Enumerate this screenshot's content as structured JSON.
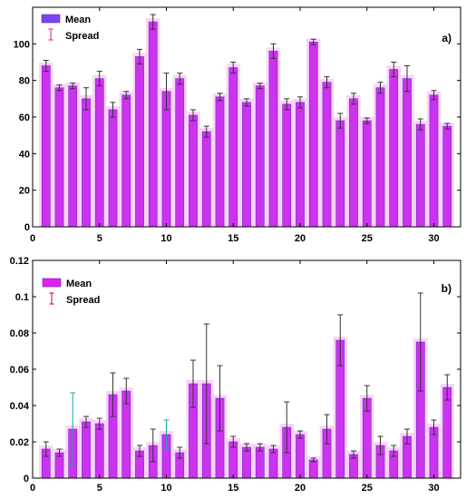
{
  "colors": {
    "bar": "#cc33ee",
    "bar_edge": "#7722cc",
    "bar_glow": "#f6c8f6",
    "legend_mean_a": "#7a44ee",
    "legend_mean_b": "#dd22ee",
    "errorbar": "#333333",
    "errorbar_cyan": "#11aaaa",
    "legend_spread_a": "#e04090",
    "legend_spread_b": "#dd2244",
    "axis": "#000000"
  },
  "chart_data": [
    {
      "type": "bar",
      "panel_label": "a)",
      "legend": {
        "placement": "top-left",
        "entries": [
          "Mean",
          "Spread"
        ]
      },
      "xlim": [
        0,
        32
      ],
      "ylim": [
        0,
        120
      ],
      "xticks": [
        "0",
        "5",
        "10",
        "15",
        "20",
        "25",
        "30"
      ],
      "yticks": [
        "0",
        "20",
        "40",
        "60",
        "80",
        "100"
      ],
      "grid": false,
      "x": [
        1,
        2,
        3,
        4,
        5,
        6,
        7,
        8,
        9,
        10,
        11,
        12,
        13,
        14,
        15,
        16,
        17,
        18,
        19,
        20,
        21,
        22,
        23,
        24,
        25,
        26,
        27,
        28,
        29,
        30,
        31
      ],
      "series": [
        {
          "name": "Mean",
          "values": [
            88,
            76,
            77,
            70,
            81,
            64,
            72,
            93,
            112,
            74,
            81,
            61,
            52,
            71,
            87,
            68,
            77,
            96,
            67,
            68,
            101,
            79,
            58,
            70,
            58,
            76,
            86,
            81,
            56,
            72,
            55
          ],
          "error": [
            3,
            1.5,
            1.5,
            6,
            4,
            4,
            2,
            4,
            4,
            10,
            3,
            3,
            3,
            2,
            3,
            2,
            1.5,
            4,
            3,
            3,
            1.5,
            3,
            4,
            3,
            1.5,
            3,
            4,
            7,
            3,
            2.5,
            1.5
          ]
        }
      ]
    },
    {
      "type": "bar",
      "panel_label": "b)",
      "legend": {
        "placement": "top-left",
        "entries": [
          "Mean",
          "Spread"
        ]
      },
      "xlim": [
        0,
        32
      ],
      "ylim": [
        0,
        0.12
      ],
      "xticks": [
        "0",
        "5",
        "10",
        "15",
        "20",
        "25",
        "30"
      ],
      "yticks": [
        "0",
        "0.02",
        "0.04",
        "0.06",
        "0.08",
        "0.1",
        "0.12"
      ],
      "grid": false,
      "x": [
        1,
        2,
        3,
        4,
        5,
        6,
        7,
        8,
        9,
        10,
        11,
        12,
        13,
        14,
        15,
        16,
        17,
        18,
        19,
        20,
        21,
        22,
        23,
        24,
        25,
        26,
        27,
        28,
        29,
        30,
        31
      ],
      "series": [
        {
          "name": "Mean",
          "values": [
            0.016,
            0.014,
            0.027,
            0.031,
            0.03,
            0.046,
            0.048,
            0.015,
            0.018,
            0.024,
            0.014,
            0.052,
            0.052,
            0.044,
            0.02,
            0.017,
            0.017,
            0.016,
            0.028,
            0.024,
            0.01,
            0.027,
            0.076,
            0.013,
            0.044,
            0.018,
            0.015,
            0.023,
            0.075,
            0.028,
            0.05
          ],
          "error": [
            0.004,
            0.002,
            0.02,
            0.003,
            0.003,
            0.012,
            0.007,
            0.003,
            0.009,
            0.008,
            0.003,
            0.013,
            0.033,
            0.018,
            0.003,
            0.002,
            0.002,
            0.002,
            0.014,
            0.002,
            0.001,
            0.008,
            0.014,
            0.002,
            0.007,
            0.005,
            0.003,
            0.004,
            0.027,
            0.004,
            0.007
          ]
        }
      ]
    }
  ]
}
